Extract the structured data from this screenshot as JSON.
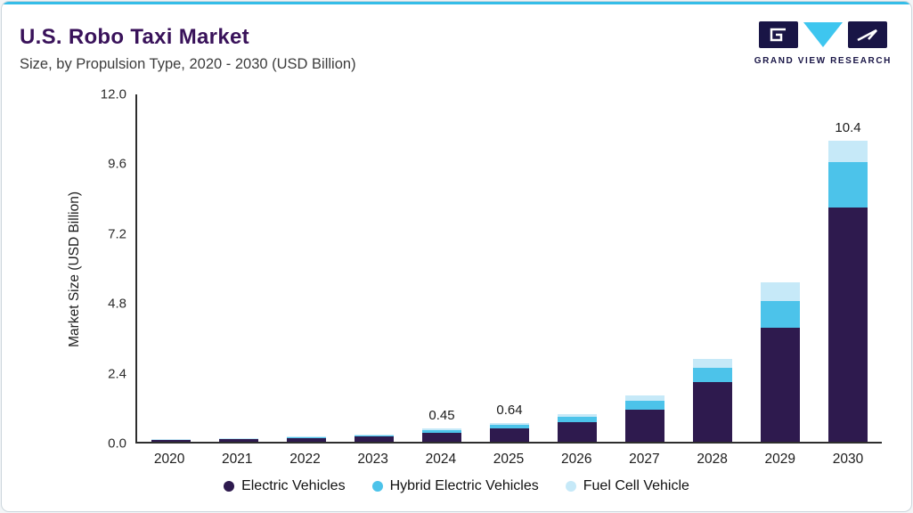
{
  "header": {
    "title": "U.S. Robo Taxi Market",
    "subtitle": "Size, by Propulsion Type, 2020 - 2030 (USD Billion)"
  },
  "logo": {
    "text": "GRAND VIEW RESEARCH"
  },
  "brand_colors": {
    "accent_blue": "#35bde8",
    "title_purple": "#39125a",
    "logo_navy": "#191546",
    "logo_cyan": "#3ec6ef"
  },
  "chart_data": {
    "type": "bar",
    "stacked": true,
    "title": "U.S. Robo Taxi Market Size, by Propulsion Type, 2020 - 2030 (USD Billion)",
    "xlabel": "",
    "ylabel": "Market Size (USD Billion)",
    "ylim": [
      0,
      12
    ],
    "ytick_labels": [
      "0.0",
      "2.4",
      "4.8",
      "7.2",
      "9.6",
      "12.0"
    ],
    "grid": false,
    "legend_position": "bottom",
    "categories": [
      "2020",
      "2021",
      "2022",
      "2023",
      "2024",
      "2025",
      "2026",
      "2027",
      "2028",
      "2029",
      "2030"
    ],
    "series": [
      {
        "name": "Electric Vehicles",
        "color": "#2e1a4e",
        "values": [
          0.07,
          0.09,
          0.12,
          0.17,
          0.32,
          0.45,
          0.67,
          1.1,
          2.05,
          3.95,
          8.1
        ]
      },
      {
        "name": "Hybrid Electric Vehicles",
        "color": "#4cc3ea",
        "values": [
          0.02,
          0.025,
          0.03,
          0.05,
          0.09,
          0.13,
          0.18,
          0.32,
          0.5,
          0.9,
          1.55
        ]
      },
      {
        "name": "Fuel Cell Vehicle",
        "color": "#c6e9f8",
        "values": [
          0.01,
          0.015,
          0.02,
          0.03,
          0.04,
          0.06,
          0.1,
          0.18,
          0.3,
          0.65,
          0.75
        ]
      }
    ],
    "data_labels": [
      "",
      "",
      "",
      "",
      "0.45",
      "0.64",
      "",
      "",
      "",
      "",
      "10.4"
    ],
    "totals": [
      0.1,
      0.13,
      0.17,
      0.25,
      0.45,
      0.64,
      0.95,
      1.6,
      2.85,
      5.5,
      10.4
    ]
  }
}
